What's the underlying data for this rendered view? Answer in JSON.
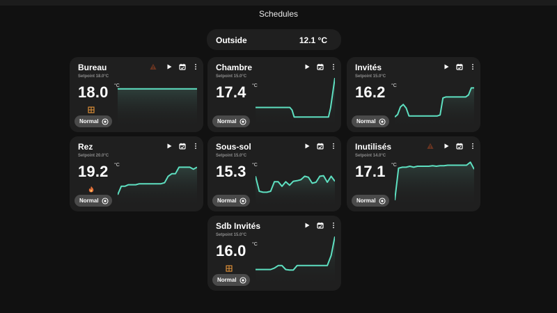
{
  "page": {
    "title": "Schedules"
  },
  "outside": {
    "label": "Outside",
    "value": "12.1 °C"
  },
  "colors": {
    "line": "#5ee0c1",
    "card": "#1f1f1f",
    "button": "#4a4a4a",
    "warning": "#b45a2a",
    "heat": "#e9973a"
  },
  "rooms": [
    {
      "name": "Bureau",
      "setpoint": "Setpoint 18.0°C",
      "temperature": "18.0",
      "unit": "°C",
      "mode": "Normal",
      "status_icon": "window-icon",
      "warning": true,
      "trend": [
        0.78,
        0.78,
        0.78,
        0.78,
        0.78,
        0.78,
        0.78,
        0.78,
        0.78,
        0.78,
        0.78,
        0.78
      ]
    },
    {
      "name": "Chambre",
      "setpoint": "Setpoint 15.0°C",
      "temperature": "17.4",
      "unit": "°C",
      "mode": "Normal",
      "status_icon": "",
      "warning": false,
      "trend": [
        0.41,
        0.41,
        0.41,
        0.41,
        0.41,
        0.41,
        0.41,
        0.41,
        0.41,
        0.41,
        0.41,
        0.41,
        0.41,
        0.41,
        0.41,
        0.41,
        0.41,
        0.36,
        0.22,
        0.22,
        0.22,
        0.22,
        0.22,
        0.22,
        0.22,
        0.22,
        0.22,
        0.22,
        0.22,
        0.22,
        0.22,
        0.22,
        0.22,
        0.22,
        0.22,
        0.4,
        0.7,
        1.0
      ]
    },
    {
      "name": "Invités",
      "setpoint": "Setpoint 15.0°C",
      "temperature": "16.2",
      "unit": "°C",
      "mode": "Normal",
      "status_icon": "",
      "warning": false,
      "trend": [
        0.22,
        0.27,
        0.42,
        0.47,
        0.4,
        0.24,
        0.24,
        0.24,
        0.24,
        0.24,
        0.24,
        0.24,
        0.24,
        0.24,
        0.24,
        0.24,
        0.26,
        0.6,
        0.62,
        0.62,
        0.62,
        0.62,
        0.62,
        0.62,
        0.62,
        0.62,
        0.66,
        0.8,
        0.8
      ]
    },
    {
      "name": "Rez",
      "setpoint": "Setpoint 20.0°C",
      "temperature": "19.2",
      "unit": "°C",
      "mode": "Normal",
      "status_icon": "flame-icon",
      "warning": false,
      "trend": [
        0.25,
        0.42,
        0.42,
        0.45,
        0.45,
        0.45,
        0.47,
        0.47,
        0.47,
        0.47,
        0.47,
        0.47,
        0.47,
        0.49,
        0.62,
        0.67,
        0.67,
        0.8,
        0.8,
        0.8,
        0.8,
        0.76,
        0.8
      ]
    },
    {
      "name": "Sous-sol",
      "setpoint": "Setpoint 15.0°C",
      "temperature": "15.3",
      "unit": "°C",
      "mode": "Normal",
      "status_icon": "",
      "warning": false,
      "trend": [
        0.62,
        0.32,
        0.3,
        0.3,
        0.32,
        0.51,
        0.51,
        0.42,
        0.51,
        0.44,
        0.52,
        0.53,
        0.55,
        0.62,
        0.6,
        0.48,
        0.5,
        0.62,
        0.63,
        0.5,
        0.62,
        0.52
      ]
    },
    {
      "name": "Inutilisés",
      "setpoint": "Setpoint 14.0°C",
      "temperature": "17.1",
      "unit": "°C",
      "mode": "Normal",
      "status_icon": "",
      "warning": true,
      "trend": [
        0.14,
        0.78,
        0.8,
        0.8,
        0.82,
        0.8,
        0.82,
        0.82,
        0.82,
        0.82,
        0.83,
        0.82,
        0.83,
        0.83,
        0.84,
        0.84,
        0.84,
        0.84,
        0.84,
        0.84,
        0.9,
        0.76
      ]
    },
    {
      "name": "Sdb Invités",
      "setpoint": "Setpoint 15.0°C",
      "temperature": "16.0",
      "unit": "°C",
      "mode": "Normal",
      "status_icon": "window-icon",
      "warning": false,
      "trend": [
        0.34,
        0.34,
        0.34,
        0.34,
        0.34,
        0.37,
        0.42,
        0.42,
        0.34,
        0.33,
        0.33,
        0.42,
        0.42,
        0.42,
        0.42,
        0.42,
        0.42,
        0.42,
        0.42,
        0.42,
        0.62,
        1.0
      ]
    }
  ]
}
